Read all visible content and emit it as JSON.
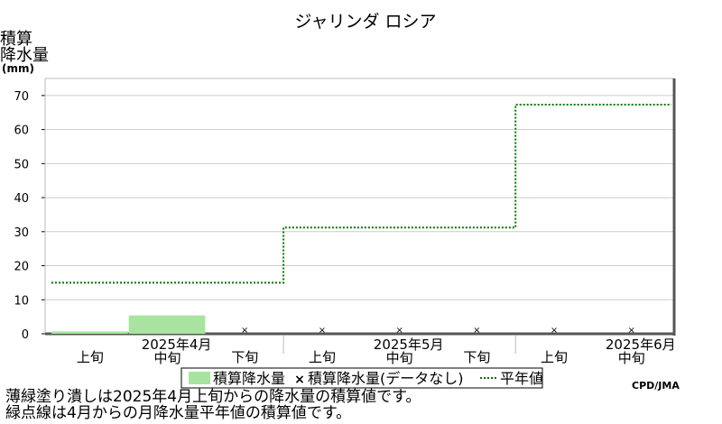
{
  "chart_data": {
    "type": "bar",
    "title": "ジャリンダ ロシア",
    "ylabel_lines": [
      "積算",
      "降水量",
      "(mm)"
    ],
    "ylim": [
      0,
      75
    ],
    "yticks": [
      0,
      10,
      20,
      30,
      40,
      50,
      60,
      70
    ],
    "grid": true,
    "legend_placement": "bottom",
    "categories": [
      {
        "label": "上旬"
      },
      {
        "label": "中旬",
        "month": "2025年4月"
      },
      {
        "label": "下旬"
      },
      {
        "label": "上旬"
      },
      {
        "label": "中旬",
        "month": "2025年5月"
      },
      {
        "label": "下旬"
      },
      {
        "label": "上旬"
      },
      {
        "label": "中旬",
        "month": "2025年6月"
      }
    ],
    "series": [
      {
        "name": "積算降水量",
        "kind": "bar",
        "color": "#a8e4a0",
        "values": [
          0.7,
          5.4,
          null,
          null,
          null,
          null,
          null,
          null
        ]
      },
      {
        "name": "積算降水量(データなし)",
        "kind": "marker",
        "marker": "×",
        "values": [
          null,
          null,
          0,
          0,
          0,
          0,
          0,
          0
        ]
      },
      {
        "name": "平年値",
        "kind": "step",
        "color": "#007700",
        "values": [
          15,
          15,
          15,
          31.2,
          31.2,
          31.2,
          67.3,
          67.3
        ]
      }
    ],
    "credit": "CPD/JMA"
  },
  "footnotes": [
    "薄緑塗り潰しは2025年4月上旬からの降水量の積算値です。",
    "緑点線は4月からの月降水量平年値の積算値です。"
  ]
}
